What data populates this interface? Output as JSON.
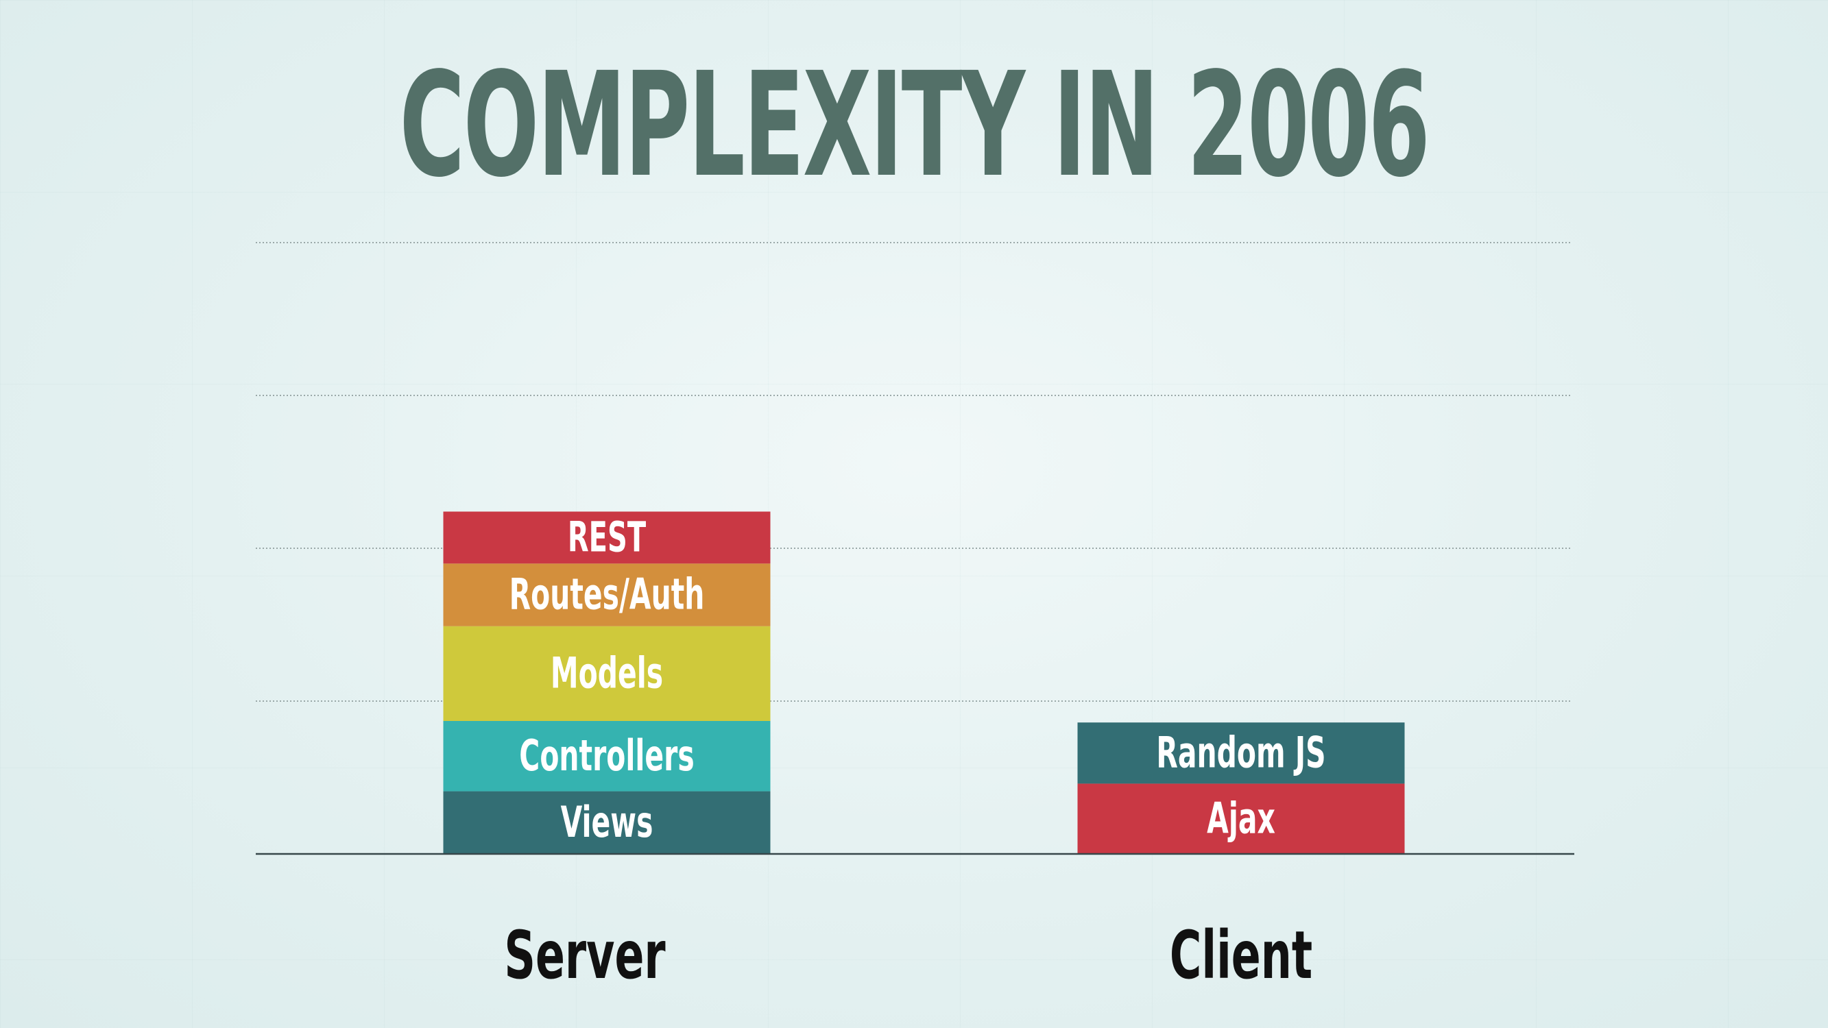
{
  "slide": {
    "title": "COMPLEXITY IN 2006"
  },
  "colors": {
    "title": "#537068",
    "grid": "#9aa8a8",
    "axis": "#37474a",
    "label": "#111111"
  },
  "chart_data": {
    "type": "bar",
    "stacked": true,
    "title": "COMPLEXITY IN 2006",
    "xlabel": "",
    "ylabel": "",
    "ylim": [
      0,
      4
    ],
    "grid": true,
    "categories": [
      "Server",
      "Client"
    ],
    "stacks": [
      {
        "category": "Server",
        "segments": [
          {
            "label": "Views",
            "value": 0.41,
            "color": "#336e74"
          },
          {
            "label": "Controllers",
            "value": 0.46,
            "color": "#35b3b0"
          },
          {
            "label": "Models",
            "value": 0.62,
            "color": "#cfc93b"
          },
          {
            "label": "Routes/Auth",
            "value": 0.41,
            "color": "#d38f3c"
          },
          {
            "label": "REST",
            "value": 0.34,
            "color": "#c93844"
          }
        ]
      },
      {
        "category": "Client",
        "segments": [
          {
            "label": "Ajax",
            "value": 0.46,
            "color": "#c93844"
          },
          {
            "label": "Random JS",
            "value": 0.4,
            "color": "#336e74"
          }
        ]
      }
    ]
  }
}
